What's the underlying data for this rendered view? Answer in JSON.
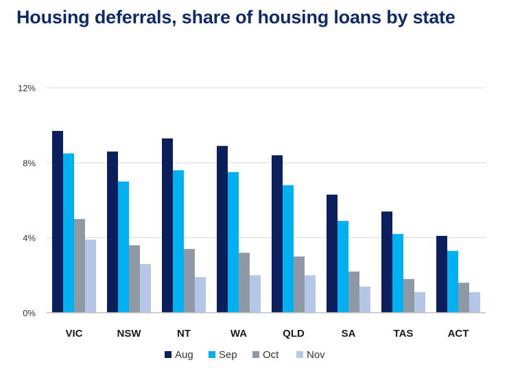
{
  "chart_data": {
    "type": "bar",
    "title": "Housing deferrals, share of housing loans by state",
    "xlabel": "",
    "ylabel": "",
    "categories": [
      "VIC",
      "NSW",
      "NT",
      "WA",
      "QLD",
      "SA",
      "TAS",
      "ACT"
    ],
    "series": [
      {
        "name": "Aug",
        "color": "#0a1f5c",
        "values": [
          9.7,
          8.6,
          9.3,
          8.9,
          8.4,
          6.3,
          5.4,
          4.1
        ]
      },
      {
        "name": "Sep",
        "color": "#00b0f0",
        "values": [
          8.5,
          7.0,
          7.6,
          7.5,
          6.8,
          4.9,
          4.2,
          3.3
        ]
      },
      {
        "name": "Oct",
        "color": "#8e99a5",
        "values": [
          5.0,
          3.6,
          3.4,
          3.2,
          3.0,
          2.2,
          1.8,
          1.6
        ]
      },
      {
        "name": "Nov",
        "color": "#b4c7e7",
        "values": [
          3.9,
          2.6,
          1.9,
          2.0,
          2.0,
          1.4,
          1.1,
          1.1
        ]
      }
    ],
    "ylim": [
      0,
      12
    ],
    "yticks": [
      0,
      4,
      8,
      12
    ],
    "ytick_labels": [
      "0%",
      "4%",
      "8%",
      "12%"
    ],
    "grid": true,
    "legend_position": "bottom"
  }
}
